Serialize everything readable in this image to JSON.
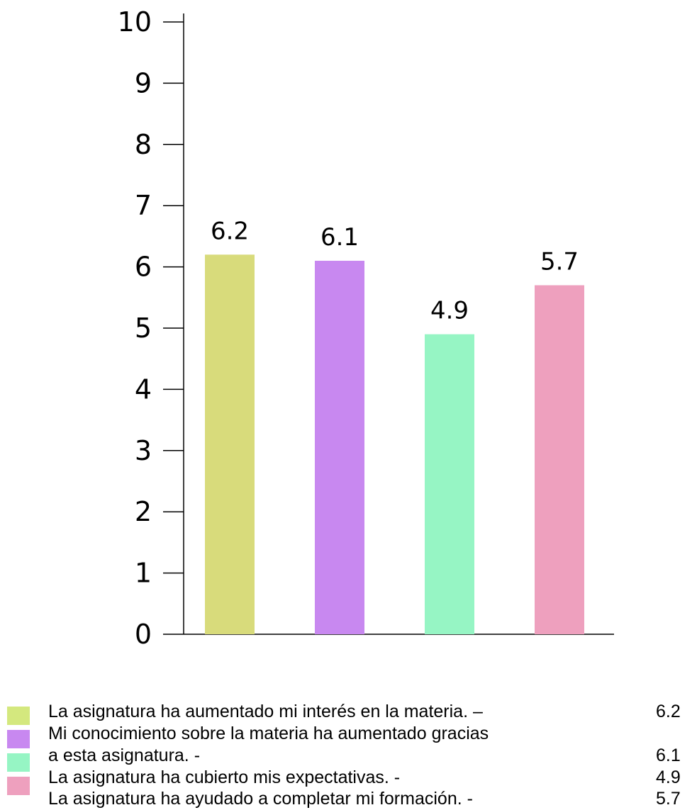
{
  "chart_data": {
    "type": "bar",
    "ylim": [
      0,
      10
    ],
    "yticks": [
      0,
      1,
      2,
      3,
      4,
      5,
      6,
      7,
      8,
      9,
      10
    ],
    "grid": false,
    "legend_position": "bottom",
    "series": [
      {
        "name": "La asignatura ha aumentado mi interés en la materia. –",
        "value": 6.2,
        "label": "6.2",
        "color": "#d8db7b"
      },
      {
        "name": "Mi conocimiento sobre la materia ha aumentado gracias a esta asignatura. -",
        "value": 6.1,
        "label": "6.1",
        "color": "#c888f0"
      },
      {
        "name": "La asignatura ha cubierto mis expectativas. -",
        "value": 4.9,
        "label": "4.9",
        "color": "#96f5c4"
      },
      {
        "name": "La asignatura ha ayudado a completar mi formación. -",
        "value": 5.7,
        "label": "5.7",
        "color": "#eea0be"
      }
    ]
  },
  "legend": {
    "swatch_colors": [
      "#d4e87e",
      "#c888f0",
      "#96f5c4",
      "#eea0be"
    ],
    "lines": [
      {
        "text": "La asignatura ha aumentado mi interés en la materia. –",
        "value": "6.2"
      },
      {
        "text": "Mi conocimiento sobre la materia ha aumentado gracias",
        "value": ""
      },
      {
        "text": "a esta asignatura. -",
        "value": "6.1"
      },
      {
        "text": "La asignatura ha cubierto mis expectativas. -",
        "value": "4.9"
      },
      {
        "text": "La asignatura ha ayudado a completar mi formación. -",
        "value": "5.7"
      }
    ]
  }
}
